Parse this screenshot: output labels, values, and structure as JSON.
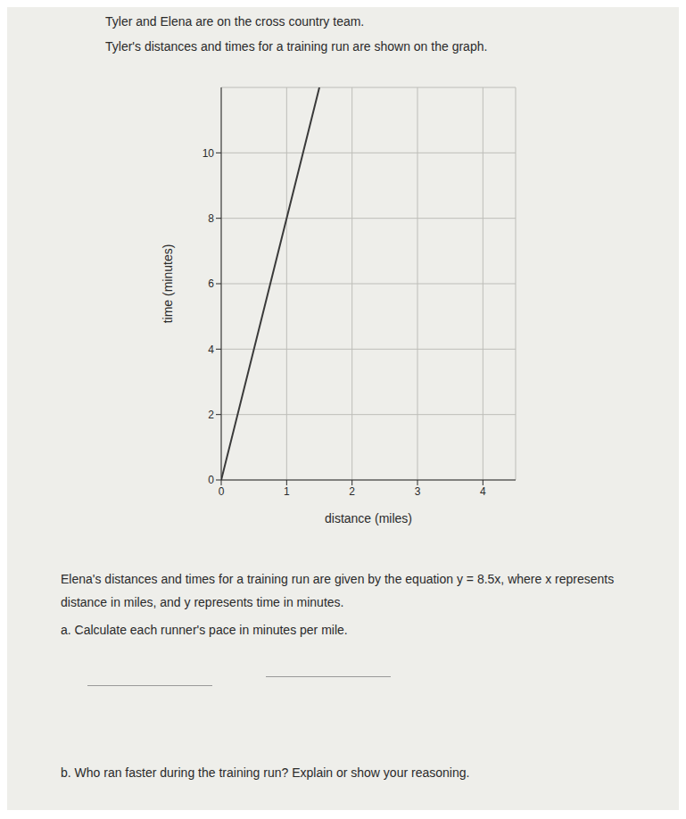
{
  "chart_data": {
    "type": "line",
    "title": "Tyler and Elena are on the cross country team.",
    "subtitle": "Tyler's distances and times for a training run are shown on the graph.",
    "x_label": "distance (miles)",
    "y_label": "time (minutes)",
    "x": [
      0,
      1,
      1.5
    ],
    "values": [
      0,
      8,
      12
    ],
    "color": "#3a3a3a",
    "xlim": [
      0,
      4.5
    ],
    "xticks": [
      0,
      1,
      2,
      3,
      4
    ],
    "ylim": [
      0,
      12
    ],
    "yticks": [
      0,
      2,
      4,
      6,
      8,
      10
    ],
    "grid": true,
    "annotations": [
      "Elena's distances and times for a training run are given by the equation y = 8.5x, where x represents distance in miles, and y represents time in minutes.",
      "a. Calculate each runner's pace in minutes per mile.",
      "b. Who ran faster during the training run? Explain or show your reasoning."
    ]
  }
}
